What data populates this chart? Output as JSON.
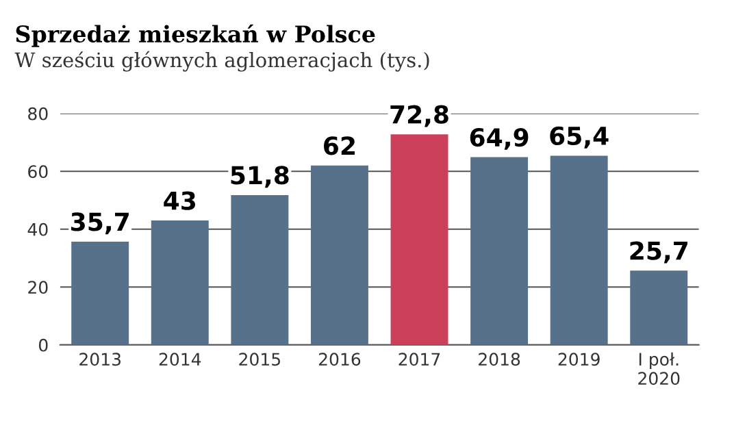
{
  "chart_data": {
    "type": "bar",
    "title": "Sprzedaż mieszkań w Polsce",
    "subtitle": "W sześciu głównych aglomeracjach (tys.)",
    "categories": [
      "2013",
      "2014",
      "2015",
      "2016",
      "2017",
      "2018",
      "2019",
      "I poł.\n2020"
    ],
    "values": [
      35.7,
      43,
      51.8,
      62,
      72.8,
      64.9,
      65.4,
      25.7
    ],
    "colors": [
      "#567189",
      "#567189",
      "#567189",
      "#567189",
      "#cc4159",
      "#567189",
      "#567189",
      "#567189"
    ],
    "value_labels": [
      "35,7",
      "43",
      "51,8",
      "62",
      "72,8",
      "64,9",
      "65,4",
      "25,7"
    ],
    "ylim": [
      0,
      80
    ],
    "yticks": [
      0,
      20,
      40,
      60,
      80
    ],
    "grid": "y",
    "legend": false
  }
}
